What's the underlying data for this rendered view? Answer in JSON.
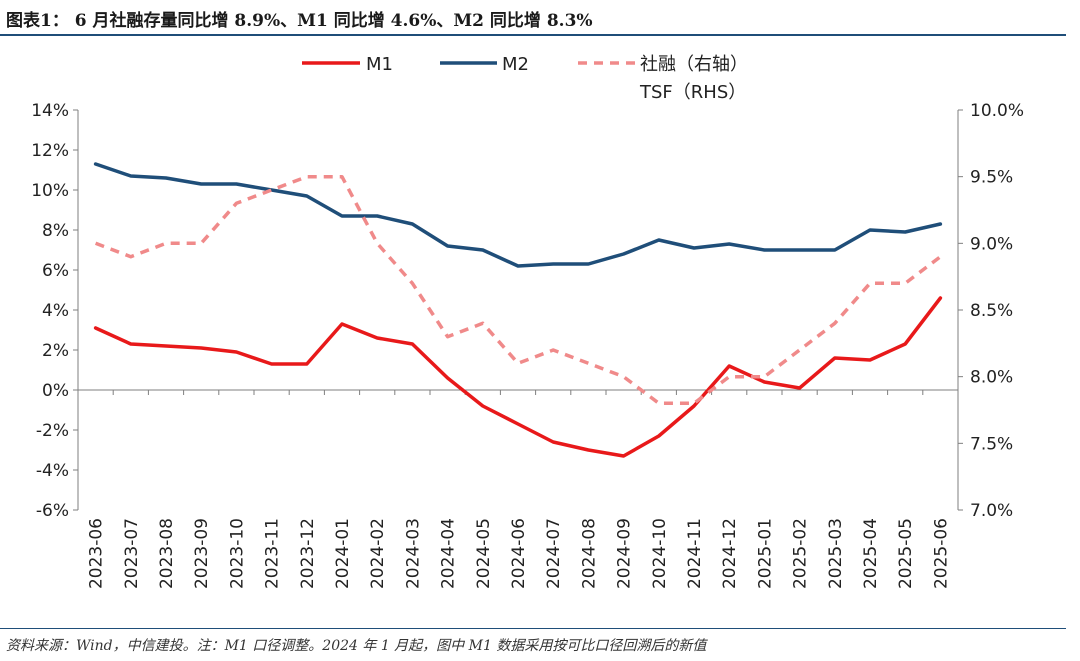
{
  "figure": {
    "title": "图表1： 6 月社融存量同比增 8.9%、M1 同比增 4.6%、M2 同比增 8.3%",
    "source": "资料来源：Wind，中信建投。注：M1 口径调整。2024 年 1 月起，图中 M1 数据采用按可比口径回溯后的新值"
  },
  "colors": {
    "m1": "#e8191a",
    "m2": "#1f4e79",
    "tsf": "#f08a8a",
    "axis": "#7f7f7f",
    "text": "#222222",
    "rule": "#1f4e79"
  },
  "chart_data": {
    "type": "line",
    "categories": [
      "2023-06",
      "2023-07",
      "2023-08",
      "2023-09",
      "2023-10",
      "2023-11",
      "2023-12",
      "2024-01",
      "2024-02",
      "2024-03",
      "2024-04",
      "2024-05",
      "2024-06",
      "2024-07",
      "2024-08",
      "2024-09",
      "2024-10",
      "2024-11",
      "2024-12",
      "2025-01",
      "2025-02",
      "2025-03",
      "2025-04",
      "2025-05",
      "2025-06"
    ],
    "series": [
      {
        "name": "M1",
        "axis": "left",
        "style": "solid",
        "color": "#e8191a",
        "values": [
          3.1,
          2.3,
          2.2,
          2.1,
          1.9,
          1.3,
          1.3,
          3.3,
          2.6,
          2.3,
          0.6,
          -0.8,
          -1.7,
          -2.6,
          -3.0,
          -3.3,
          -2.3,
          -0.8,
          1.2,
          0.4,
          0.1,
          1.6,
          1.5,
          2.3,
          4.6
        ]
      },
      {
        "name": "M2",
        "axis": "left",
        "style": "solid",
        "color": "#1f4e79",
        "values": [
          11.3,
          10.7,
          10.6,
          10.3,
          10.3,
          10.0,
          9.7,
          8.7,
          8.7,
          8.3,
          7.2,
          7.0,
          6.2,
          6.3,
          6.3,
          6.8,
          7.5,
          7.1,
          7.3,
          7.0,
          7.0,
          7.0,
          8.0,
          7.9,
          8.3
        ]
      },
      {
        "name": "社融（右轴）",
        "name_line2": "TSF（RHS）",
        "axis": "right",
        "style": "dashed",
        "color": "#f08a8a",
        "values": [
          9.0,
          8.9,
          9.0,
          9.0,
          9.3,
          9.4,
          9.5,
          9.5,
          9.0,
          8.7,
          8.3,
          8.4,
          8.1,
          8.2,
          8.1,
          8.0,
          7.8,
          7.8,
          8.0,
          8.0,
          8.2,
          8.4,
          8.7,
          8.7,
          8.9
        ]
      }
    ],
    "yaxis_left": {
      "min": -6,
      "max": 14,
      "step": 2,
      "format": "percent0",
      "ticks": [
        "14%",
        "12%",
        "10%",
        "8%",
        "6%",
        "4%",
        "2%",
        "0%",
        "-2%",
        "-4%",
        "-6%"
      ]
    },
    "yaxis_right": {
      "min": 7.0,
      "max": 10.0,
      "step": 0.5,
      "format": "percent1",
      "ticks": [
        "10.0%",
        "9.5%",
        "9.0%",
        "8.5%",
        "8.0%",
        "7.5%",
        "7.0%"
      ]
    },
    "xlabel": "",
    "ylabel": "",
    "grid": false,
    "legend_position": "top-right"
  }
}
